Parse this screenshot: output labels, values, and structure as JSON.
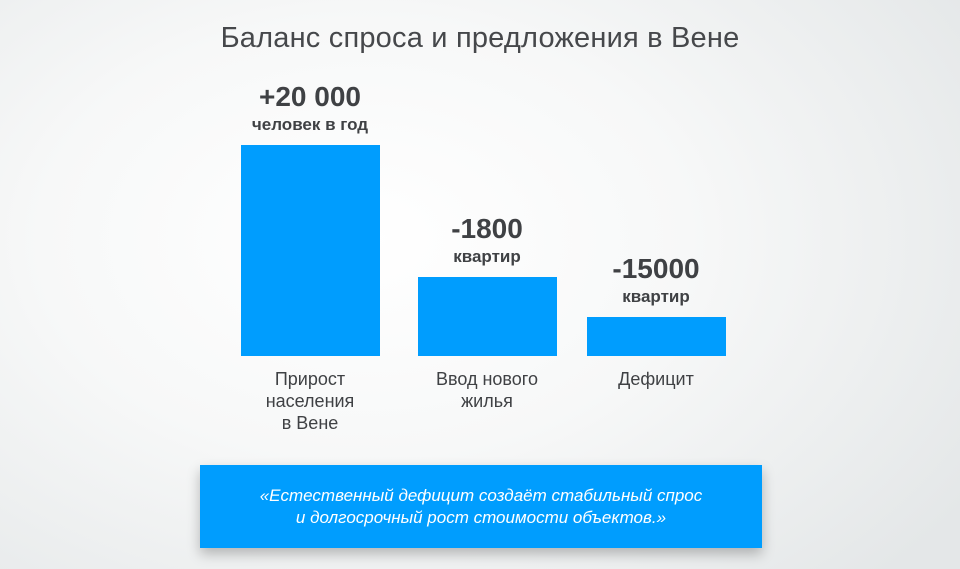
{
  "chart_data": {
    "type": "bar",
    "title": "Баланс спроса и предложения в Вене",
    "categories": [
      "Прирост\nнаселения\nв Вене",
      "Ввод нового\nжилья",
      "Дефицит"
    ],
    "values": [
      20000,
      -1800,
      -15000
    ],
    "value_labels": [
      "+20 000",
      "-1800",
      "-15000"
    ],
    "unit_labels": [
      "человек в год",
      "квартир",
      "квартир"
    ],
    "xlabel": "",
    "ylabel": "",
    "grid": false,
    "color": "#009dfe"
  },
  "quote": {
    "text": "«Естественный дефицит создаёт стабильный спрос\nи долгосрочный рост стоимости объектов.»"
  }
}
